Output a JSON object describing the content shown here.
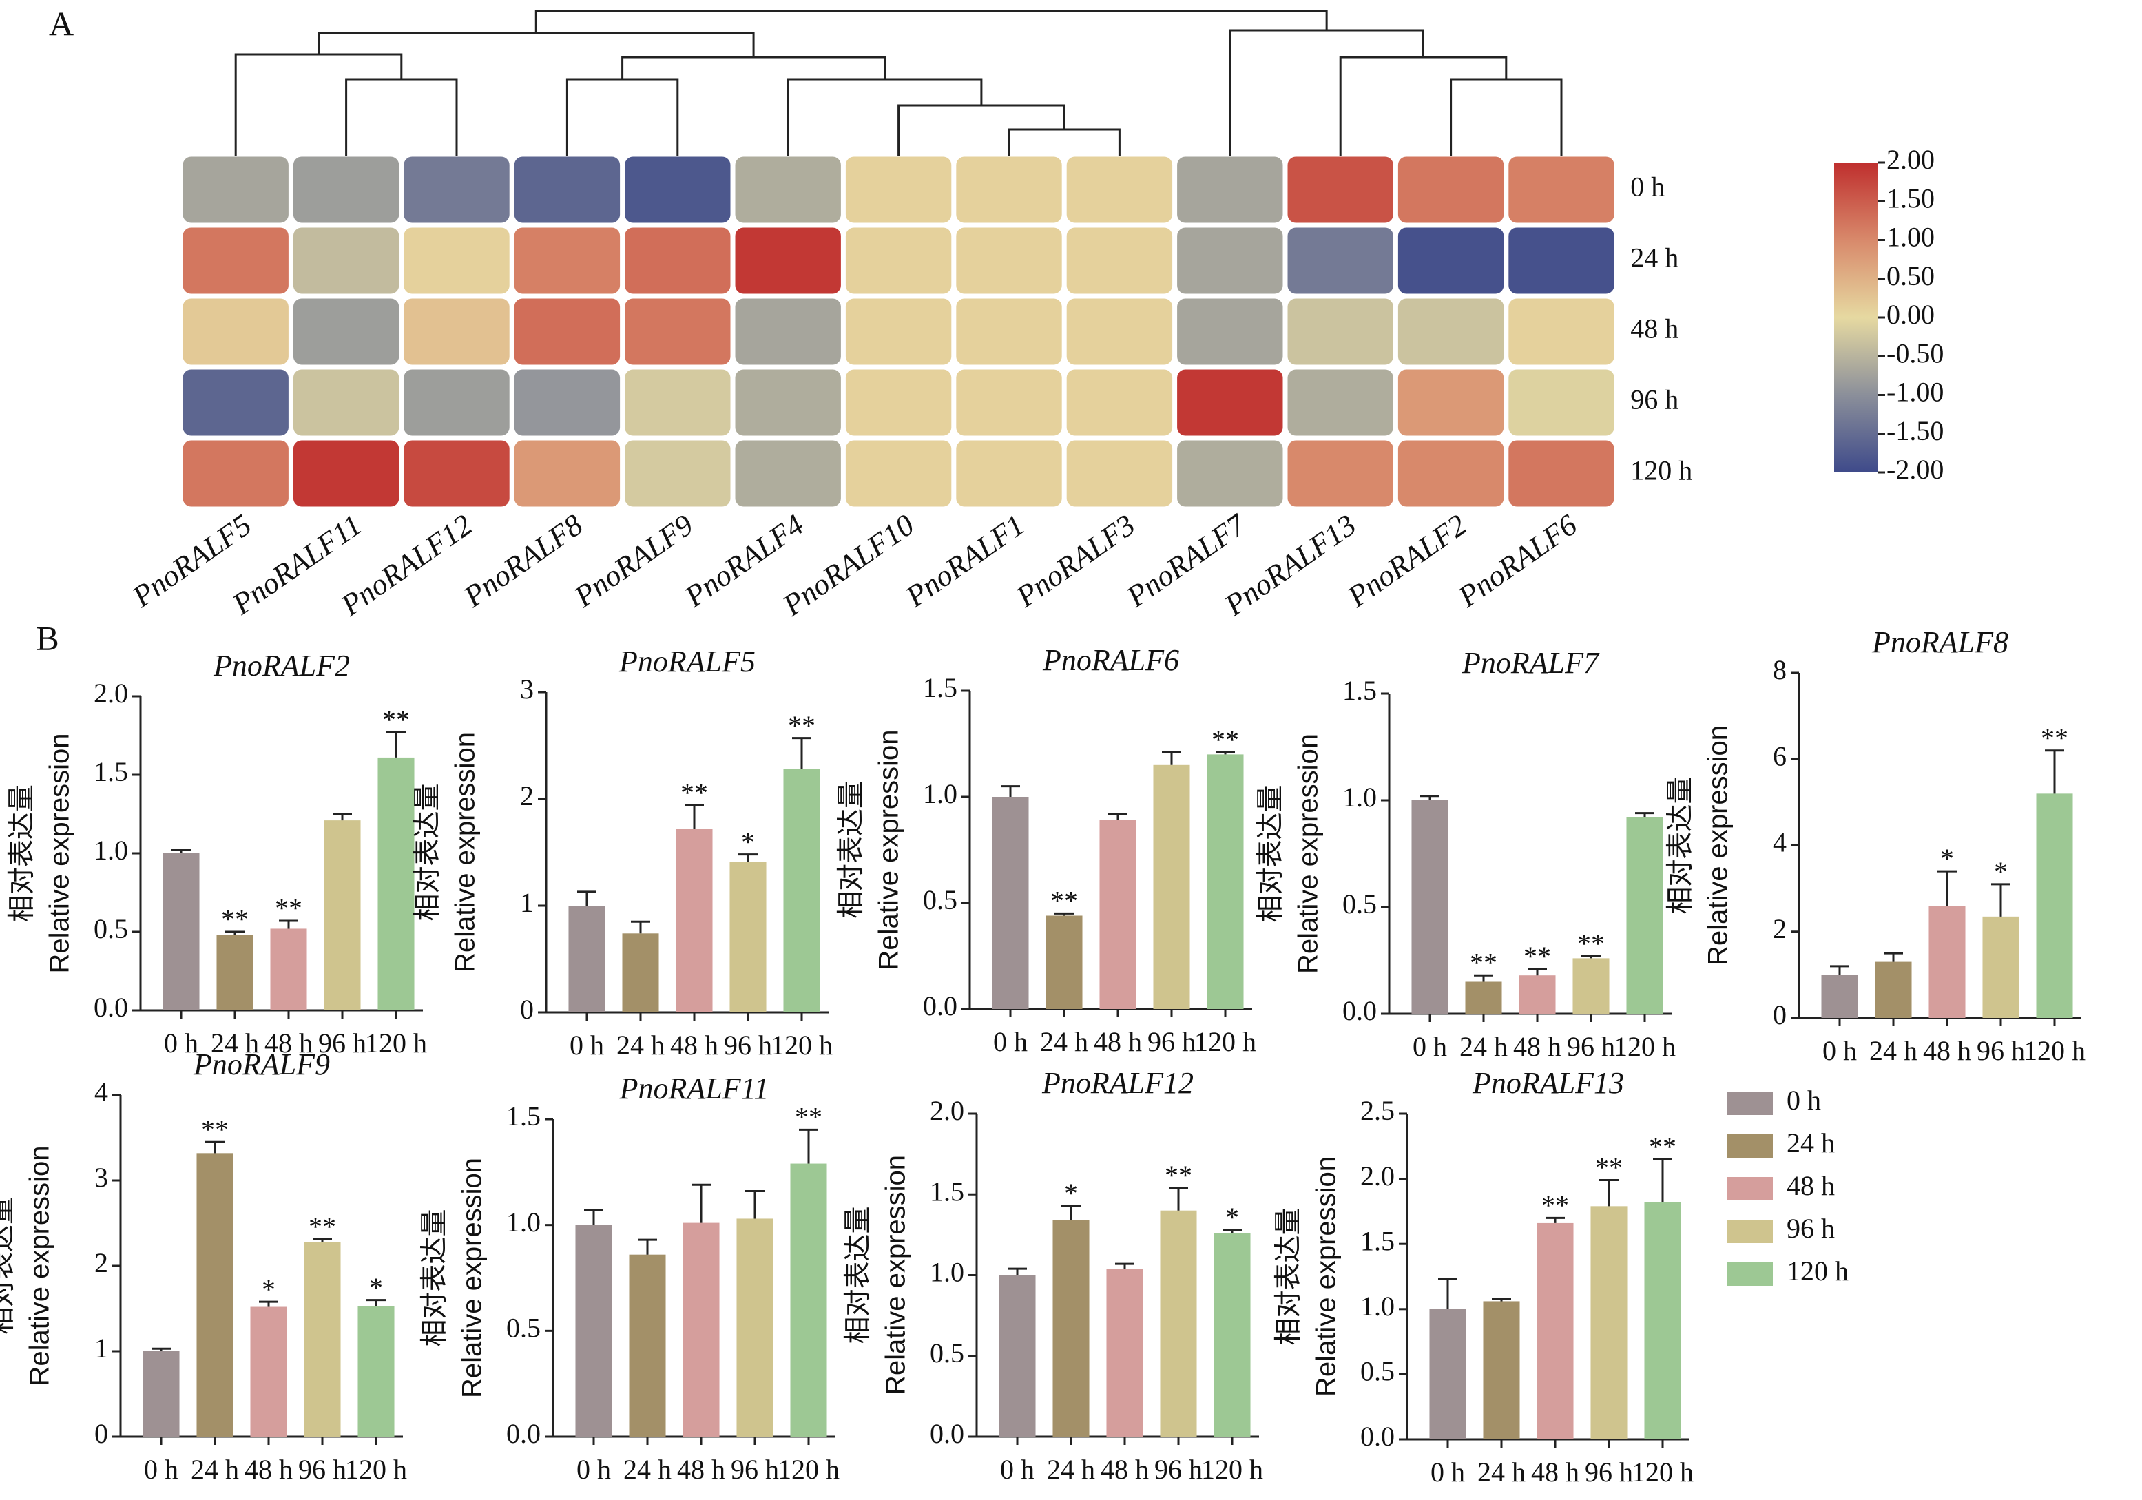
{
  "chart_data": [
    {
      "type": "heatmap",
      "panel_label": "A",
      "rows": [
        "0 h",
        "24 h",
        "48 h",
        "96 h",
        "120 h"
      ],
      "columns": [
        "PnoRALF5",
        "PnoRALF11",
        "PnoRALF12",
        "PnoRALF8",
        "PnoRALF9",
        "PnoRALF4",
        "PnoRALF10",
        "PnoRALF1",
        "PnoRALF3",
        "PnoRALF7",
        "PnoRALF13",
        "PnoRALF2",
        "PnoRALF6"
      ],
      "values": [
        [
          -0.7,
          -0.8,
          -1.3,
          -1.6,
          -1.8,
          -0.6,
          0.1,
          0.1,
          0.1,
          -0.7,
          1.6,
          1.2,
          1.1
        ],
        [
          1.2,
          -0.4,
          0.1,
          1.1,
          1.3,
          1.9,
          0.1,
          0.1,
          0.1,
          -0.7,
          -1.3,
          -1.9,
          -1.9
        ],
        [
          0.2,
          -0.8,
          0.3,
          1.3,
          1.2,
          -0.7,
          0.1,
          0.1,
          0.1,
          -0.7,
          -0.3,
          -0.3,
          0.1
        ],
        [
          -1.6,
          -0.3,
          -0.8,
          -0.9,
          -0.2,
          -0.6,
          0.1,
          0.1,
          0.1,
          1.9,
          -0.6,
          0.8,
          -0.1
        ],
        [
          1.2,
          1.9,
          1.7,
          0.8,
          -0.2,
          -0.6,
          0.1,
          0.1,
          0.1,
          -0.6,
          1.0,
          1.0,
          1.2
        ]
      ],
      "vlim": [
        -2,
        2
      ],
      "colors": [
        "#3e4a8a",
        "#8b8f9a",
        "#e6d9a1",
        "#d8896b",
        "#bf2f2e"
      ],
      "ticks": [
        {
          "value": 2,
          "label": "2.00"
        },
        {
          "value": 1.5,
          "label": "1.50"
        },
        {
          "value": 1,
          "label": "1.00"
        },
        {
          "value": 0.5,
          "label": "0.50"
        },
        {
          "value": 0,
          "label": "0.00"
        },
        {
          "value": -0.5,
          "label": "-0.50"
        },
        {
          "value": -1,
          "label": "-1.00"
        },
        {
          "value": -1.5,
          "label": "-1.50"
        },
        {
          "value": -2,
          "label": "-2.00"
        }
      ]
    },
    {
      "type": "bar",
      "panel_label": "B",
      "title": "PnoRALF2",
      "ylabel": [
        "相对表达量",
        "Relative expression"
      ],
      "categories": [
        "0 h",
        "24 h",
        "48 h",
        "96 h",
        "120 h"
      ],
      "values": [
        1.0,
        0.48,
        0.52,
        1.21,
        1.61
      ],
      "errors": [
        0.02,
        0.02,
        0.05,
        0.04,
        0.16
      ],
      "annotations": [
        null,
        "**",
        "**",
        null,
        "**"
      ],
      "colors": [
        "#9e9193",
        "#a39068",
        "#d59e9c",
        "#cfc48e",
        "#9dc894"
      ],
      "ylim": [
        0,
        2
      ],
      "yticks": [
        {
          "value": 0,
          "label": "0.0"
        },
        0.5,
        {
          "value": 1,
          "label": "1.0"
        },
        1.5,
        {
          "value": 2,
          "label": "2.0"
        }
      ]
    },
    {
      "type": "bar",
      "title": "PnoRALF5",
      "ylabel": [
        "相对表达量",
        "Relative expression"
      ],
      "categories": [
        "0 h",
        "24 h",
        "48 h",
        "96 h",
        "120 h"
      ],
      "values": [
        1.0,
        0.74,
        1.72,
        1.41,
        2.28
      ],
      "errors": [
        0.13,
        0.11,
        0.22,
        0.07,
        0.29
      ],
      "annotations": [
        null,
        null,
        "**",
        "*",
        "**"
      ],
      "colors": [
        "#9e9193",
        "#a39068",
        "#d59e9c",
        "#cfc48e",
        "#9dc894"
      ],
      "ylim": [
        0,
        3
      ],
      "yticks": [
        0,
        1,
        2,
        3
      ]
    },
    {
      "type": "bar",
      "title": "PnoRALF6",
      "ylabel": [
        "相对表达量",
        "Relative expression"
      ],
      "categories": [
        "0 h",
        "24 h",
        "48 h",
        "96 h",
        "120 h"
      ],
      "values": [
        1.0,
        0.44,
        0.89,
        1.15,
        1.2
      ],
      "errors": [
        0.05,
        0.01,
        0.03,
        0.06,
        0.01
      ],
      "annotations": [
        null,
        "**",
        null,
        null,
        "**"
      ],
      "colors": [
        "#9e9193",
        "#a39068",
        "#d59e9c",
        "#cfc48e",
        "#9dc894"
      ],
      "ylim": [
        0,
        1.5
      ],
      "yticks": [
        {
          "value": 0,
          "label": "0.0"
        },
        0.5,
        {
          "value": 1,
          "label": "1.0"
        },
        1.5
      ]
    },
    {
      "type": "bar",
      "title": "PnoRALF7",
      "ylabel": [
        "相对表达量",
        "Relative expression"
      ],
      "categories": [
        "0 h",
        "24 h",
        "48 h",
        "96 h",
        "120 h"
      ],
      "values": [
        1.0,
        0.15,
        0.18,
        0.26,
        0.92
      ],
      "errors": [
        0.02,
        0.03,
        0.03,
        0.01,
        0.02
      ],
      "annotations": [
        null,
        "**",
        "**",
        "**",
        null
      ],
      "colors": [
        "#9e9193",
        "#a39068",
        "#d59e9c",
        "#cfc48e",
        "#9dc894"
      ],
      "ylim": [
        0,
        1.5
      ],
      "yticks": [
        {
          "value": 0,
          "label": "0.0"
        },
        0.5,
        {
          "value": 1,
          "label": "1.0"
        },
        1.5
      ]
    },
    {
      "type": "bar",
      "title": "PnoRALF8",
      "ylabel": [
        "相对表达量",
        "Relative expression"
      ],
      "categories": [
        "0 h",
        "24 h",
        "48 h",
        "96 h",
        "120 h"
      ],
      "values": [
        1.0,
        1.3,
        2.6,
        2.35,
        5.2
      ],
      "errors": [
        0.2,
        0.2,
        0.8,
        0.75,
        1.0
      ],
      "annotations": [
        null,
        null,
        "*",
        "*",
        "**"
      ],
      "colors": [
        "#9e9193",
        "#a39068",
        "#d59e9c",
        "#cfc48e",
        "#9dc894"
      ],
      "ylim": [
        0,
        8
      ],
      "yticks": [
        0,
        2,
        4,
        6,
        8
      ]
    },
    {
      "type": "bar",
      "title": "PnoRALF9",
      "ylabel": [
        "相对表达量",
        "Relative expression"
      ],
      "categories": [
        "0 h",
        "24 h",
        "48 h",
        "96 h",
        "120 h"
      ],
      "values": [
        1.0,
        3.32,
        1.52,
        2.28,
        1.53
      ],
      "errors": [
        0.03,
        0.13,
        0.06,
        0.03,
        0.07
      ],
      "annotations": [
        null,
        "**",
        "*",
        "**",
        "*"
      ],
      "colors": [
        "#9e9193",
        "#a39068",
        "#d59e9c",
        "#cfc48e",
        "#9dc894"
      ],
      "ylim": [
        0,
        4
      ],
      "yticks": [
        0,
        1,
        2,
        3,
        4
      ]
    },
    {
      "type": "bar",
      "title": "PnoRALF11",
      "ylabel": [
        "相对表达量",
        "Relative expression"
      ],
      "categories": [
        "0 h",
        "24 h",
        "48 h",
        "96 h",
        "120 h"
      ],
      "values": [
        1.0,
        0.86,
        1.01,
        1.03,
        1.29
      ],
      "errors": [
        0.07,
        0.07,
        0.18,
        0.13,
        0.16
      ],
      "annotations": [
        null,
        null,
        null,
        null,
        "**"
      ],
      "colors": [
        "#9e9193",
        "#a39068",
        "#d59e9c",
        "#cfc48e",
        "#9dc894"
      ],
      "ylim": [
        0,
        1.5
      ],
      "yticks": [
        {
          "value": 0,
          "label": "0.0"
        },
        0.5,
        {
          "value": 1,
          "label": "1.0"
        },
        1.5
      ]
    },
    {
      "type": "bar",
      "title": "PnoRALF12",
      "ylabel": [
        "相对表达量",
        "Relative expression"
      ],
      "categories": [
        "0 h",
        "24 h",
        "48 h",
        "96 h",
        "120 h"
      ],
      "values": [
        1.0,
        1.34,
        1.04,
        1.4,
        1.26
      ],
      "errors": [
        0.04,
        0.09,
        0.03,
        0.14,
        0.02
      ],
      "annotations": [
        null,
        "*",
        null,
        "**",
        "*"
      ],
      "colors": [
        "#9e9193",
        "#a39068",
        "#d59e9c",
        "#cfc48e",
        "#9dc894"
      ],
      "ylim": [
        0,
        2
      ],
      "yticks": [
        {
          "value": 0,
          "label": "0.0"
        },
        0.5,
        {
          "value": 1,
          "label": "1.0"
        },
        1.5,
        {
          "value": 2,
          "label": "2.0"
        }
      ]
    },
    {
      "type": "bar",
      "title": "PnoRALF13",
      "ylabel": [
        "相对表达量",
        "Relative expression"
      ],
      "categories": [
        "0 h",
        "24 h",
        "48 h",
        "96 h",
        "120 h"
      ],
      "values": [
        1.0,
        1.06,
        1.66,
        1.79,
        1.82
      ],
      "errors": [
        0.23,
        0.02,
        0.04,
        0.2,
        0.33
      ],
      "annotations": [
        null,
        null,
        "**",
        "**",
        "**"
      ],
      "colors": [
        "#9e9193",
        "#a39068",
        "#d59e9c",
        "#cfc48e",
        "#9dc894"
      ],
      "ylim": [
        0,
        2.5
      ],
      "yticks": [
        {
          "value": 0,
          "label": "0.0"
        },
        0.5,
        {
          "value": 1,
          "label": "1.0"
        },
        1.5,
        {
          "value": 2,
          "label": "2.0"
        },
        2.5
      ]
    }
  ],
  "legend": {
    "labels": [
      "0 h",
      "24 h",
      "48 h",
      "96 h",
      "120 h"
    ],
    "colors": [
      "#9e9193",
      "#a39068",
      "#d59e9c",
      "#cfc48e",
      "#9dc894"
    ]
  }
}
